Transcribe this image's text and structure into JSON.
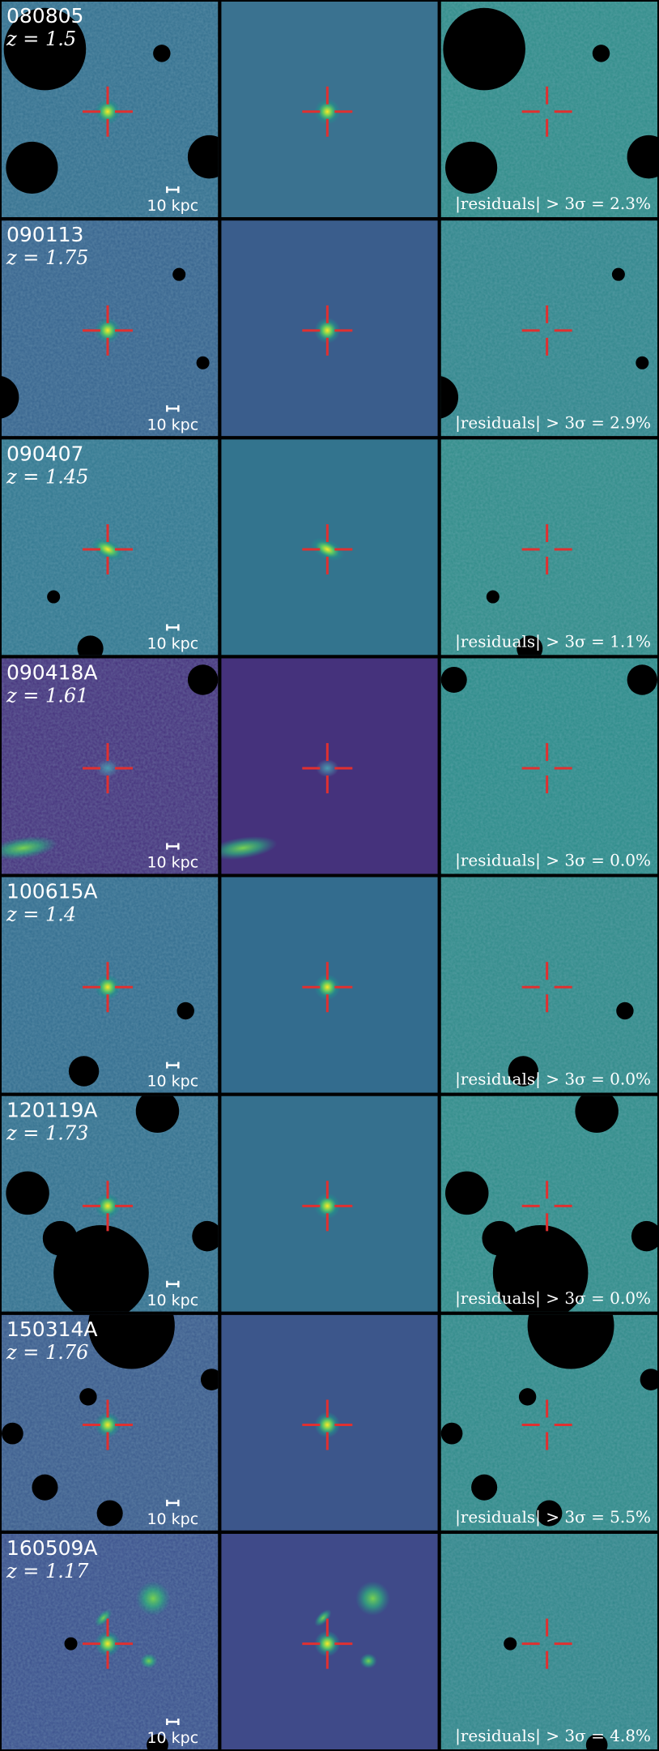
{
  "figure": {
    "rows": [
      {
        "name": "080805",
        "redshift": "z = 1.5",
        "scale": "10 kpc",
        "residuals": "|residuals| > 3σ = 2.3%"
      },
      {
        "name": "090113",
        "redshift": "z = 1.75",
        "scale": "10 kpc",
        "residuals": "|residuals| > 3σ = 2.9%"
      },
      {
        "name": "090407",
        "redshift": "z = 1.45",
        "scale": "10 kpc",
        "residuals": "|residuals| > 3σ = 1.1%"
      },
      {
        "name": "090418A",
        "redshift": "z = 1.61",
        "scale": "10 kpc",
        "residuals": "|residuals| > 3σ = 0.0%"
      },
      {
        "name": "100615A",
        "redshift": "z = 1.4",
        "scale": "10 kpc",
        "residuals": "|residuals| > 3σ = 0.0%"
      },
      {
        "name": "120119A",
        "redshift": "z = 1.73",
        "scale": "10 kpc",
        "residuals": "|residuals| > 3σ = 0.0%"
      },
      {
        "name": "150314A",
        "redshift": "z = 1.76",
        "scale": "10 kpc",
        "residuals": "|residuals| > 3σ = 5.5%"
      },
      {
        "name": "160509A",
        "redshift": "z = 1.17",
        "scale": "10 kpc",
        "residuals": "|residuals| > 3σ = 4.8%"
      }
    ]
  }
}
